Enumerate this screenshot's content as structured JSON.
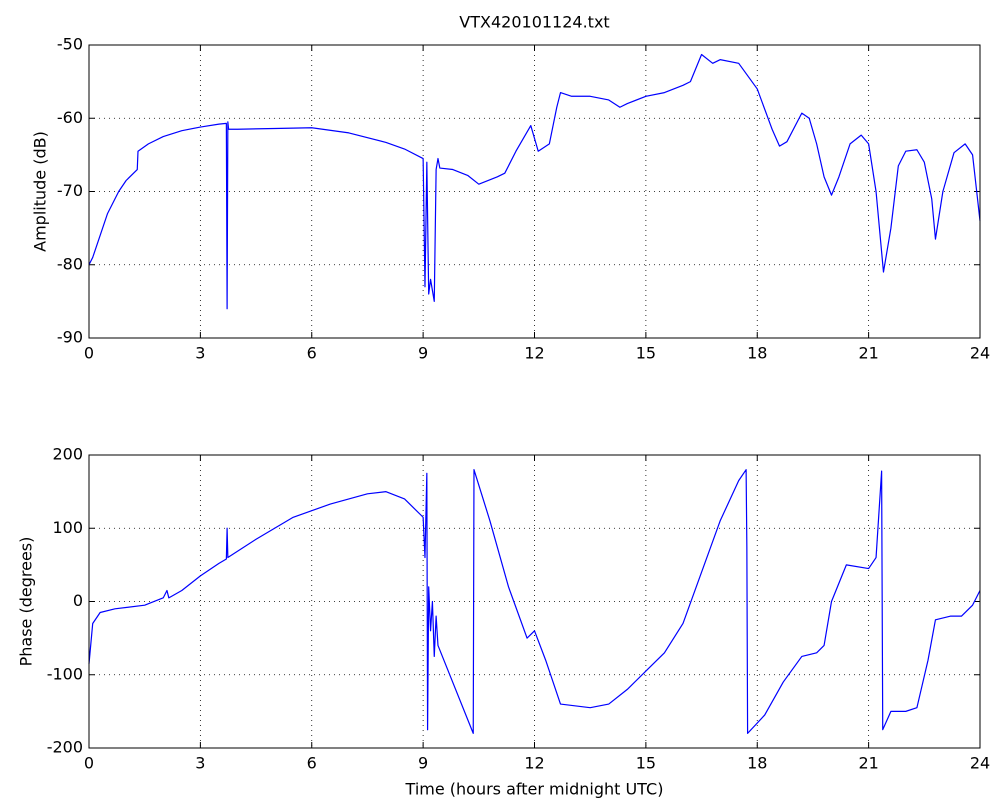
{
  "chart_data": [
    {
      "type": "line",
      "title": "VTX420101124.txt",
      "ylabel": "Amplitude (dB)",
      "color": "#0000ff",
      "grid": true,
      "xlim": [
        0,
        24
      ],
      "xticks": [
        0,
        3,
        6,
        9,
        12,
        15,
        18,
        21,
        24
      ],
      "ylim": [
        -90,
        -50
      ],
      "yticks": [
        -90,
        -80,
        -70,
        -60,
        -50
      ],
      "x": [
        0,
        0.1,
        0.3,
        0.5,
        0.8,
        1.0,
        1.3,
        1.32,
        1.6,
        2.0,
        2.5,
        3.0,
        3.5,
        3.7,
        3.72,
        3.74,
        3.76,
        4.0,
        5.0,
        6.0,
        7.0,
        8.0,
        8.5,
        9.0,
        9.05,
        9.1,
        9.15,
        9.2,
        9.3,
        9.35,
        9.4,
        9.45,
        9.8,
        10.2,
        10.5,
        11.0,
        11.2,
        11.5,
        11.9,
        12.1,
        12.4,
        12.6,
        12.7,
        13.0,
        13.5,
        14.0,
        14.3,
        14.5,
        15.0,
        15.5,
        16.0,
        16.2,
        16.5,
        16.8,
        17.0,
        17.5,
        18.0,
        18.4,
        18.6,
        18.8,
        19.2,
        19.4,
        19.6,
        19.8,
        20.0,
        20.2,
        20.5,
        20.8,
        21.0,
        21.2,
        21.4,
        21.6,
        21.8,
        22.0,
        22.3,
        22.5,
        22.7,
        22.8,
        23.0,
        23.3,
        23.6,
        23.8,
        24.0
      ],
      "values": [
        -80,
        -79,
        -76,
        -73,
        -70,
        -68.5,
        -67,
        -64.5,
        -63.5,
        -62.5,
        -61.7,
        -61.2,
        -60.8,
        -60.7,
        -86,
        -60.5,
        -61.5,
        -61.5,
        -61.4,
        -61.3,
        -62,
        -63.3,
        -64.2,
        -65.5,
        -83,
        -66,
        -84,
        -82,
        -85,
        -67,
        -65.5,
        -66.8,
        -67,
        -67.8,
        -69,
        -68,
        -67.5,
        -64.5,
        -61,
        -64.5,
        -63.5,
        -58.5,
        -56.5,
        -57,
        -57,
        -57.5,
        -58.5,
        -58,
        -57,
        -56.5,
        -55.5,
        -55,
        -51.3,
        -52.5,
        -52,
        -52.5,
        -56,
        -61.5,
        -63.8,
        -63.2,
        -59.3,
        -60,
        -63.5,
        -68,
        -70.5,
        -68,
        -63.5,
        -62.3,
        -63.5,
        -70,
        -81,
        -75,
        -66.5,
        -64.5,
        -64.3,
        -66,
        -71,
        -76.5,
        -70,
        -64.7,
        -63.5,
        -65,
        -74
      ]
    },
    {
      "type": "line",
      "xlabel": "Time (hours after midnight UTC)",
      "ylabel": "Phase (degrees)",
      "color": "#0000ff",
      "grid": true,
      "xlim": [
        0,
        24
      ],
      "xticks": [
        0,
        3,
        6,
        9,
        12,
        15,
        18,
        21,
        24
      ],
      "ylim": [
        -200,
        200
      ],
      "yticks": [
        -200,
        -100,
        0,
        100,
        200
      ],
      "x": [
        0,
        0.1,
        0.3,
        0.7,
        1.5,
        2.0,
        2.1,
        2.15,
        2.5,
        3.0,
        3.5,
        3.7,
        3.72,
        3.74,
        4.5,
        5.5,
        6.5,
        7.5,
        8.0,
        8.5,
        9.0,
        9.05,
        9.1,
        9.12,
        9.15,
        9.2,
        9.25,
        9.3,
        9.35,
        9.4,
        10.35,
        10.37,
        10.8,
        11.3,
        11.8,
        12.0,
        12.3,
        12.7,
        13.5,
        14.0,
        14.5,
        15.0,
        15.5,
        16.0,
        16.5,
        17.0,
        17.5,
        17.7,
        17.72,
        17.74,
        18.2,
        18.7,
        19.2,
        19.6,
        19.8,
        20.0,
        20.4,
        21.0,
        21.2,
        21.35,
        21.38,
        21.6,
        22.0,
        22.3,
        22.6,
        22.8,
        23.2,
        23.5,
        23.8,
        24.0
      ],
      "values": [
        -85,
        -30,
        -15,
        -10,
        -5,
        5,
        15,
        5,
        15,
        35,
        52,
        58,
        100,
        60,
        85,
        115,
        133,
        147,
        150,
        140,
        115,
        60,
        175,
        -175,
        20,
        -40,
        0,
        -75,
        -20,
        -60,
        -180,
        180,
        110,
        20,
        -50,
        -40,
        -80,
        -140,
        -145,
        -140,
        -120,
        -95,
        -70,
        -30,
        40,
        110,
        165,
        180,
        75,
        -180,
        -155,
        -110,
        -75,
        -70,
        -60,
        0,
        50,
        45,
        60,
        178,
        -175,
        -150,
        -150,
        -145,
        -80,
        -25,
        -20,
        -20,
        -5,
        15
      ]
    }
  ]
}
